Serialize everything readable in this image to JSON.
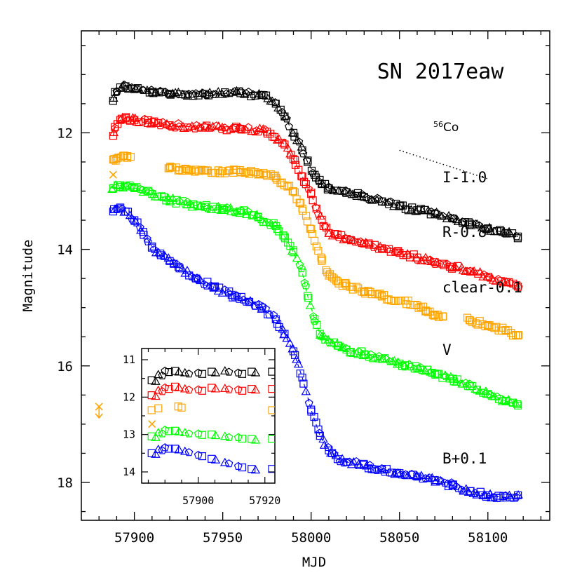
{
  "chart_data": [
    {
      "type": "scatter",
      "title": "SN 2017eaw",
      "xlabel": "MJD",
      "ylabel": "Magnitude",
      "xlim": [
        57870,
        58135
      ],
      "ylim": [
        18.65,
        10.25
      ],
      "y_inverted": true,
      "x_ticks": [
        "57900",
        "57950",
        "58000",
        "58050",
        "58100"
      ],
      "y_ticks": [
        "12",
        "14",
        "16",
        "18"
      ],
      "annotation": {
        "text": "Co",
        "superscript": "56",
        "decay_slope_mag_per_day": 0.0098,
        "x": [
          58050,
          58100
        ],
        "y": [
          12.3,
          12.79
        ]
      },
      "series": [
        {
          "name": "I-1.0",
          "color": "#000000",
          "markers": [
            "square",
            "triangle",
            "pentagon"
          ],
          "points": [
            [
              57888,
              11.45
            ],
            [
              57889,
              11.3
            ],
            [
              57892,
              11.22
            ],
            [
              57895,
              11.2
            ],
            [
              57900,
              11.25
            ],
            [
              57910,
              11.3
            ],
            [
              57920,
              11.33
            ],
            [
              57940,
              11.33
            ],
            [
              57960,
              11.32
            ],
            [
              57972,
              11.35
            ],
            [
              57980,
              11.5
            ],
            [
              57985,
              11.72
            ],
            [
              57990,
              12.0
            ],
            [
              57995,
              12.3
            ],
            [
              57998,
              12.5
            ],
            [
              58002,
              12.72
            ],
            [
              58006,
              12.88
            ],
            [
              58010,
              12.95
            ],
            [
              58020,
              13.02
            ],
            [
              58030,
              13.1
            ],
            [
              58040,
              13.18
            ],
            [
              58050,
              13.26
            ],
            [
              58060,
              13.33
            ],
            [
              58070,
              13.39
            ],
            [
              58080,
              13.47
            ],
            [
              58090,
              13.56
            ],
            [
              58100,
              13.64
            ],
            [
              58110,
              13.72
            ],
            [
              58117,
              13.78
            ]
          ]
        },
        {
          "name": "R-0.8",
          "color": "#ff0000",
          "markers": [
            "square",
            "triangle",
            "pentagon"
          ],
          "points": [
            [
              57888,
              12.05
            ],
            [
              57889,
              11.9
            ],
            [
              57892,
              11.78
            ],
            [
              57895,
              11.75
            ],
            [
              57900,
              11.78
            ],
            [
              57910,
              11.82
            ],
            [
              57920,
              11.87
            ],
            [
              57940,
              11.91
            ],
            [
              57960,
              11.93
            ],
            [
              57975,
              11.98
            ],
            [
              57985,
              12.2
            ],
            [
              57990,
              12.45
            ],
            [
              57995,
              12.75
            ],
            [
              58000,
              13.05
            ],
            [
              58003,
              13.3
            ],
            [
              58007,
              13.6
            ],
            [
              58010,
              13.72
            ],
            [
              58020,
              13.82
            ],
            [
              58030,
              13.9
            ],
            [
              58040,
              13.98
            ],
            [
              58050,
              14.06
            ],
            [
              58060,
              14.14
            ],
            [
              58070,
              14.22
            ],
            [
              58080,
              14.3
            ],
            [
              58090,
              14.38
            ],
            [
              58100,
              14.47
            ],
            [
              58110,
              14.56
            ],
            [
              58117,
              14.64
            ]
          ]
        },
        {
          "name": "clear-0.1",
          "color": "#ffa500",
          "markers": [
            "square"
          ],
          "points": [
            [
              57888,
              12.46
            ],
            [
              57890,
              12.44
            ],
            [
              57896,
              12.4
            ],
            [
              57920,
              12.6
            ],
            [
              57930,
              12.63
            ],
            [
              57940,
              12.65
            ],
            [
              57950,
              12.66
            ],
            [
              57960,
              12.67
            ],
            [
              57970,
              12.7
            ],
            [
              57980,
              12.77
            ],
            [
              57990,
              13.0
            ],
            [
              57995,
              13.3
            ],
            [
              58000,
              13.65
            ],
            [
              58003,
              13.95
            ],
            [
              58006,
              14.2
            ],
            [
              58010,
              14.45
            ],
            [
              58015,
              14.55
            ],
            [
              58020,
              14.62
            ],
            [
              58030,
              14.72
            ],
            [
              58040,
              14.8
            ],
            [
              58050,
              14.88
            ],
            [
              58060,
              14.96
            ],
            [
              58065,
              15.05
            ],
            [
              58070,
              15.12
            ],
            [
              58090,
              15.22
            ],
            [
              58100,
              15.3
            ],
            [
              58110,
              15.4
            ],
            [
              58117,
              15.48
            ]
          ]
        },
        {
          "name": "V",
          "color": "#00ff00",
          "markers": [
            "square",
            "triangle",
            "pentagon"
          ],
          "points": [
            [
              57888,
              12.95
            ],
            [
              57892,
              12.9
            ],
            [
              57895,
              12.92
            ],
            [
              57900,
              12.95
            ],
            [
              57910,
              13.05
            ],
            [
              57920,
              13.15
            ],
            [
              57930,
              13.23
            ],
            [
              57940,
              13.27
            ],
            [
              57950,
              13.3
            ],
            [
              57960,
              13.35
            ],
            [
              57970,
              13.45
            ],
            [
              57980,
              13.6
            ],
            [
              57985,
              13.78
            ],
            [
              57990,
              14.05
            ],
            [
              57995,
              14.4
            ],
            [
              57998,
              14.8
            ],
            [
              58002,
              15.2
            ],
            [
              58005,
              15.45
            ],
            [
              58008,
              15.55
            ],
            [
              58015,
              15.65
            ],
            [
              58020,
              15.72
            ],
            [
              58030,
              15.8
            ],
            [
              58040,
              15.88
            ],
            [
              58050,
              15.96
            ],
            [
              58060,
              16.05
            ],
            [
              58070,
              16.13
            ],
            [
              58080,
              16.22
            ],
            [
              58090,
              16.35
            ],
            [
              58100,
              16.48
            ],
            [
              58110,
              16.6
            ],
            [
              58117,
              16.68
            ]
          ]
        },
        {
          "name": "B+0.1",
          "color": "#0000ff",
          "markers": [
            "square",
            "triangle",
            "pentagon"
          ],
          "points": [
            [
              57888,
              13.35
            ],
            [
              57891,
              13.3
            ],
            [
              57895,
              13.35
            ],
            [
              57900,
              13.5
            ],
            [
              57905,
              13.7
            ],
            [
              57910,
              13.95
            ],
            [
              57915,
              14.1
            ],
            [
              57920,
              14.2
            ],
            [
              57925,
              14.3
            ],
            [
              57935,
              14.5
            ],
            [
              57945,
              14.65
            ],
            [
              57955,
              14.78
            ],
            [
              57965,
              14.9
            ],
            [
              57972,
              15.0
            ],
            [
              57980,
              15.2
            ],
            [
              57985,
              15.45
            ],
            [
              57990,
              15.75
            ],
            [
              57995,
              16.2
            ],
            [
              58000,
              16.75
            ],
            [
              58005,
              17.2
            ],
            [
              58010,
              17.45
            ],
            [
              58015,
              17.6
            ],
            [
              58020,
              17.65
            ],
            [
              58030,
              17.7
            ],
            [
              58040,
              17.78
            ],
            [
              58050,
              17.84
            ],
            [
              58060,
              17.9
            ],
            [
              58070,
              17.96
            ],
            [
              58080,
              18.05
            ],
            [
              58090,
              18.15
            ],
            [
              58100,
              18.22
            ],
            [
              58110,
              18.26
            ],
            [
              58117,
              18.22
            ]
          ]
        }
      ],
      "upper_limits": [
        {
          "series": "clear-0.1",
          "color": "#ffa500",
          "marker": "x",
          "points": [
            [
              57888,
              12.72
            ],
            [
              57880,
              16.7
            ]
          ]
        }
      ],
      "fit_curves": [
        {
          "series": "I-1.0",
          "color": "#000000",
          "style": "dashed"
        },
        {
          "series": "R-0.8",
          "color": "#ff0000",
          "style": "dashed"
        },
        {
          "series": "V",
          "color": "#00ff00",
          "style": "dashed"
        },
        {
          "series": "B+0.1",
          "color": "#0000ff",
          "style": "dashed"
        }
      ]
    },
    {
      "type": "scatter",
      "title": "",
      "inset": true,
      "xlim": [
        57883,
        57923
      ],
      "ylim": [
        14.3,
        10.7
      ],
      "x_ticks": [
        "57900",
        "57920"
      ],
      "y_ticks": [
        "11",
        "12",
        "13",
        "14"
      ],
      "series": [
        {
          "name": "I-1.0",
          "color": "#000000",
          "points": [
            [
              57886,
              11.55
            ],
            [
              57888,
              11.4
            ],
            [
              57890,
              11.3
            ],
            [
              57893,
              11.3
            ],
            [
              57896,
              11.35
            ],
            [
              57900,
              11.35
            ],
            [
              57904,
              11.32
            ],
            [
              57908,
              11.3
            ],
            [
              57912,
              11.35
            ],
            [
              57916,
              11.32
            ]
          ]
        },
        {
          "name": "R-0.8",
          "color": "#ff0000",
          "points": [
            [
              57886,
              11.95
            ],
            [
              57888,
              11.82
            ],
            [
              57890,
              11.75
            ],
            [
              57893,
              11.72
            ],
            [
              57896,
              11.78
            ],
            [
              57900,
              11.8
            ],
            [
              57904,
              11.75
            ],
            [
              57908,
              11.77
            ],
            [
              57912,
              11.8
            ],
            [
              57916,
              11.78
            ]
          ]
        },
        {
          "name": "clear-0.1",
          "color": "#ffa500",
          "points": [
            [
              57886,
              12.35
            ],
            [
              57888,
              12.3
            ],
            [
              57894,
              12.25
            ],
            [
              57895,
              12.28
            ]
          ]
        },
        {
          "name": "V",
          "color": "#00ff00",
          "points": [
            [
              57886,
              13.05
            ],
            [
              57888,
              12.95
            ],
            [
              57890,
              12.88
            ],
            [
              57893,
              12.9
            ],
            [
              57896,
              12.95
            ],
            [
              57900,
              12.98
            ],
            [
              57904,
              13.0
            ],
            [
              57908,
              13.05
            ],
            [
              57912,
              13.08
            ],
            [
              57916,
              13.12
            ]
          ]
        },
        {
          "name": "B+0.1",
          "color": "#0000ff",
          "points": [
            [
              57886,
              13.5
            ],
            [
              57888,
              13.4
            ],
            [
              57890,
              13.35
            ],
            [
              57893,
              13.38
            ],
            [
              57896,
              13.45
            ],
            [
              57900,
              13.55
            ],
            [
              57904,
              13.65
            ],
            [
              57908,
              13.75
            ],
            [
              57912,
              13.85
            ],
            [
              57916,
              13.92
            ]
          ]
        }
      ],
      "upper_limits": [
        {
          "series": "clear-0.1",
          "color": "#ffa500",
          "marker": "x",
          "points": [
            [
              57884,
              12.72
            ]
          ]
        }
      ]
    }
  ]
}
